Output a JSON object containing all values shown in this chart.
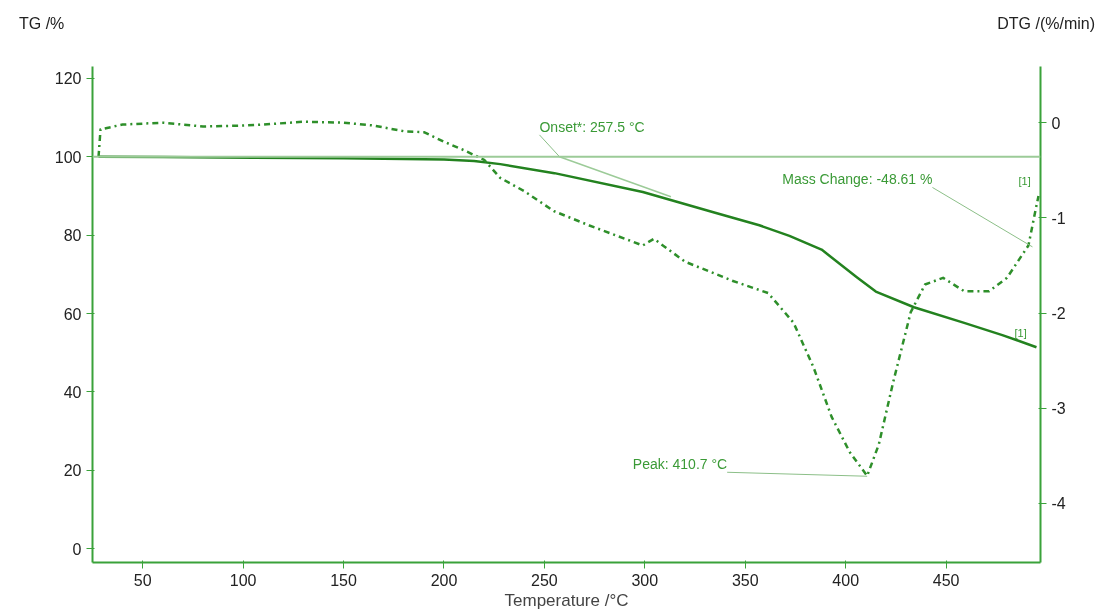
{
  "chart_data": {
    "type": "line",
    "xlabel": "Temperature /°C",
    "ylabel": "TG /%",
    "y2label": "DTG /(%/min)",
    "xlim": [
      25,
      497
    ],
    "xticks": [
      50,
      100,
      150,
      200,
      250,
      300,
      350,
      400,
      450
    ],
    "ylim": [
      -3.5,
      123
    ],
    "yticks": [
      0,
      20,
      40,
      60,
      80,
      100,
      120
    ],
    "y2lim": [
      -4.62,
      0.59
    ],
    "y2ticks": [
      -4,
      -3,
      -2,
      -1,
      0
    ],
    "grid": false,
    "series": [
      {
        "color": "#23821f",
        "line_style": "solid",
        "x": [
          28,
          60,
          105,
          150,
          200,
          215,
          228,
          255,
          299,
          335,
          357,
          372,
          388,
          405.7,
          415,
          434,
          459,
          478,
          495
        ],
        "values": [
          100,
          99.9,
          99.7,
          99.6,
          99.3,
          98.9,
          98.1,
          95.8,
          91,
          85.7,
          82.5,
          79.8,
          76.3,
          69.2,
          65.6,
          61.6,
          57.6,
          54.5,
          51.4
        ]
      },
      {
        "axis": "y2",
        "color": "#2e8f2a",
        "line_style": "dashdot",
        "x": [
          28,
          29,
          40,
          60,
          80,
          100,
          110,
          130,
          150,
          165,
          180,
          190,
          200,
          210,
          220,
          228,
          240,
          254.8,
          272.4,
          299,
          304.5,
          320,
          343.5,
          361.4,
          374,
          384,
          393,
          402,
          410.7,
          416.5,
          423.6,
          432.4,
          439.5,
          448.5,
          459,
          471.4,
          480.3,
          491,
          494.8,
          496
        ],
        "values": [
          -0.36,
          -0.07,
          -0.02,
          0.0,
          -0.04,
          -0.03,
          -0.02,
          0.01,
          0.0,
          -0.03,
          -0.09,
          -0.1,
          -0.2,
          -0.29,
          -0.39,
          -0.58,
          -0.72,
          -0.93,
          -1.08,
          -1.29,
          -1.22,
          -1.46,
          -1.66,
          -1.79,
          -2.1,
          -2.57,
          -3.09,
          -3.46,
          -3.71,
          -3.38,
          -2.73,
          -1.99,
          -1.7,
          -1.63,
          -1.77,
          -1.77,
          -1.63,
          -1.29,
          -0.89,
          -0.77
        ]
      },
      {
        "color": "#9ccb98",
        "line_style": "solid",
        "x": [
          257.5,
          313
        ],
        "values": [
          100,
          89.8
        ]
      }
    ],
    "ref_lines": [
      {
        "axis": "y",
        "value": 100,
        "color": "#9ccb98"
      }
    ],
    "annotations": [
      {
        "text": "Onset*: 257.5 °C",
        "x": 257.5,
        "y": 100
      },
      {
        "text": "Peak: 410.7 °C",
        "x": 410.7,
        "y": 18.5
      },
      {
        "text": "Mass Change: -48.61 %",
        "x": 493,
        "y": 77
      },
      {
        "text": "[1]",
        "x": 493,
        "y": 100
      },
      {
        "text": "[1]",
        "x": 493,
        "y": 51.4
      }
    ]
  }
}
